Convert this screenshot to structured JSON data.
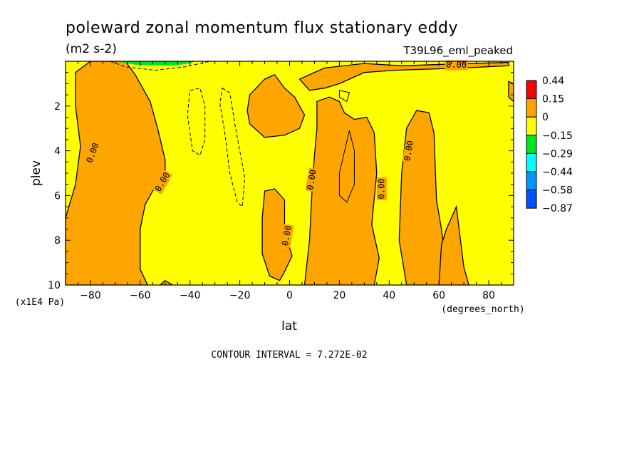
{
  "chart_data": {
    "type": "heatmap",
    "title": "poleward zonal momentum flux stationary eddy",
    "units": "(m2 s-2)",
    "dataset": "T39L96_eml_peaked",
    "xlabel": "lat",
    "ylabel": "plev",
    "x_units": "(degrees_north)",
    "y_units": "(x1E4 Pa)",
    "xlim": [
      -90,
      90
    ],
    "ylim": [
      10,
      0
    ],
    "x_ticks": [
      -80,
      -60,
      -40,
      -20,
      0,
      20,
      40,
      60,
      80
    ],
    "x_tick_labels": [
      "−80",
      "−60",
      "−40",
      "−20",
      "0",
      "20",
      "40",
      "60",
      "80"
    ],
    "y_ticks": [
      2,
      4,
      6,
      8,
      10
    ],
    "y_tick_labels": [
      "2",
      "4",
      "6",
      "8",
      "10"
    ],
    "contour_interval_text": "CONTOUR INTERVAL = 7.272E-02",
    "contour_label": "0.00",
    "colorbar": {
      "levels": [
        "0.44",
        "0.15",
        "0",
        "−0.15",
        "−0.29",
        "−0.44",
        "−0.58",
        "−0.87"
      ],
      "colors": [
        "#ff0000",
        "#ffa500",
        "#ffff00",
        "#00e61e",
        "#00ffff",
        "#0096ff",
        "#0050ff"
      ]
    },
    "positive_regions": [
      {
        "name": "sh-high-lat-band",
        "lat_lev": [
          [
            -90,
            7
          ],
          [
            -86,
            5.5
          ],
          [
            -84,
            3.8
          ],
          [
            -86,
            2
          ],
          [
            -86,
            0.5
          ],
          [
            -80,
            0
          ],
          [
            -66,
            0
          ],
          [
            -62,
            0.6
          ],
          [
            -56,
            1.8
          ],
          [
            -53,
            3
          ],
          [
            -50,
            4.4
          ],
          [
            -50,
            5.2
          ],
          [
            -55,
            5.8
          ],
          [
            -58,
            6.4
          ],
          [
            -60,
            7.5
          ],
          [
            -60,
            9.3
          ],
          [
            -57,
            10
          ],
          [
            -90,
            10
          ]
        ]
      },
      {
        "name": "sh-surface-patch",
        "lat_lev": [
          [
            -52,
            10
          ],
          [
            -50,
            9.8
          ],
          [
            -47,
            10
          ]
        ]
      },
      {
        "name": "near-equator-upper",
        "lat_lev": [
          [
            -16,
            1.5
          ],
          [
            -10,
            0.8
          ],
          [
            -6,
            0.6
          ],
          [
            -2,
            1.2
          ],
          [
            2,
            1.6
          ],
          [
            6,
            2.4
          ],
          [
            4,
            3
          ],
          [
            -2,
            3.3
          ],
          [
            -10,
            3.4
          ],
          [
            -16,
            2.8
          ],
          [
            -17,
            2.2
          ]
        ]
      },
      {
        "name": "near-equator-lower",
        "lat_lev": [
          [
            -10,
            5.8
          ],
          [
            -6,
            5.7
          ],
          [
            -2,
            6.2
          ],
          [
            -2,
            7.6
          ],
          [
            1,
            8.7
          ],
          [
            -2,
            9.4
          ],
          [
            -4,
            9.8
          ],
          [
            -8,
            9.6
          ],
          [
            -11,
            8.6
          ],
          [
            -11,
            7
          ]
        ]
      },
      {
        "name": "nh-subtropical-band",
        "lat_lev": [
          [
            6,
            10
          ],
          [
            8,
            8
          ],
          [
            9,
            5.8
          ],
          [
            10,
            4.2
          ],
          [
            11,
            3
          ],
          [
            11,
            1.8
          ],
          [
            16,
            1.6
          ],
          [
            20,
            1.8
          ],
          [
            22,
            2.3
          ],
          [
            26,
            2.6
          ],
          [
            31,
            2.5
          ],
          [
            34,
            3.2
          ],
          [
            35,
            5
          ],
          [
            33,
            7.3
          ],
          [
            36,
            8.8
          ],
          [
            34,
            10
          ]
        ]
      },
      {
        "name": "nh-upper-branch",
        "lat_lev": [
          [
            4,
            0.8
          ],
          [
            14,
            0.3
          ],
          [
            30,
            0.1
          ],
          [
            45,
            0.2
          ],
          [
            58,
            0.15
          ],
          [
            88,
            0.05
          ],
          [
            88,
            0.2
          ],
          [
            70,
            0.3
          ],
          [
            56,
            0.35
          ],
          [
            42,
            0.4
          ],
          [
            30,
            0.5
          ],
          [
            24,
            0.8
          ],
          [
            20,
            1.0
          ],
          [
            14,
            1.2
          ],
          [
            8,
            1.3
          ]
        ]
      },
      {
        "name": "nh-midlatitude-band",
        "lat_lev": [
          [
            47,
            10
          ],
          [
            44,
            8
          ],
          [
            45,
            5
          ],
          [
            47,
            3
          ],
          [
            51,
            2.2
          ],
          [
            56,
            2.3
          ],
          [
            58,
            3.2
          ],
          [
            59,
            6.2
          ],
          [
            61,
            7.5
          ],
          [
            63,
            9.3
          ],
          [
            65,
            10
          ]
        ]
      },
      {
        "name": "nh-polar-surface",
        "lat_lev": [
          [
            61,
            8.2
          ],
          [
            63,
            7.5
          ],
          [
            67,
            6.5
          ],
          [
            70,
            9.2
          ],
          [
            72,
            10
          ],
          [
            60,
            10
          ]
        ]
      },
      {
        "name": "nh-polar-upper",
        "lat_lev": [
          [
            88,
            0.9
          ],
          [
            90,
            1.0
          ],
          [
            90,
            1.8
          ],
          [
            88,
            1.6
          ]
        ]
      }
    ],
    "dashed_contours": [
      {
        "name": "neg-contour-a",
        "lat_lev": [
          [
            -40,
            1.3
          ],
          [
            -36,
            1.2
          ],
          [
            -34,
            2
          ],
          [
            -34,
            3.5
          ],
          [
            -36,
            4.2
          ],
          [
            -39,
            4
          ],
          [
            -41,
            2.4
          ]
        ]
      },
      {
        "name": "neg-contour-b",
        "lat_lev": [
          [
            -27,
            1.2
          ],
          [
            -24,
            1.4
          ],
          [
            -22,
            2.8
          ],
          [
            -20,
            4
          ],
          [
            -18,
            5.2
          ],
          [
            -19,
            6.5
          ],
          [
            -21,
            6.3
          ],
          [
            -24,
            5
          ],
          [
            -26,
            3.2
          ],
          [
            -28,
            1.9
          ]
        ]
      },
      {
        "name": "neg-contour-top",
        "lat_lev": [
          [
            -72,
            0
          ],
          [
            -66,
            0.25
          ],
          [
            -54,
            0.4
          ],
          [
            -42,
            0.25
          ],
          [
            -32,
            0
          ]
        ]
      }
    ],
    "inner_contours": [
      {
        "name": "positive-inner-a",
        "lat_lev": [
          [
            20,
            1.3
          ],
          [
            24,
            1.4
          ],
          [
            23,
            1.8
          ],
          [
            20,
            1.6
          ]
        ]
      },
      {
        "name": "positive-inner-b",
        "lat_lev": [
          [
            20,
            5
          ],
          [
            24,
            3.1
          ],
          [
            26,
            4
          ],
          [
            26,
            5.5
          ],
          [
            23,
            6.3
          ],
          [
            20,
            6
          ]
        ]
      }
    ],
    "contour_label_positions": [
      {
        "lat": -79,
        "lev": 4.1,
        "angle": -70
      },
      {
        "lat": -51,
        "lev": 5.4,
        "angle": -60
      },
      {
        "lat": 9,
        "lev": 5.3,
        "angle": -80
      },
      {
        "lat": 37,
        "lev": 5.7,
        "angle": -90
      },
      {
        "lat": 48,
        "lev": 4.0,
        "angle": -80
      },
      {
        "lat": -1,
        "lev": 7.8,
        "angle": -80
      },
      {
        "lat": 67,
        "lev": 0.18,
        "angle": 0
      }
    ]
  }
}
